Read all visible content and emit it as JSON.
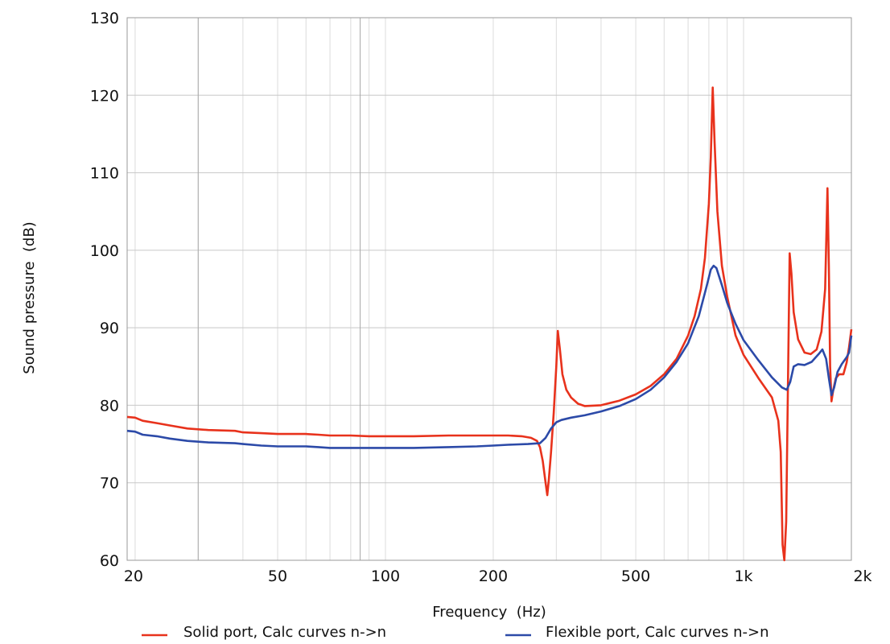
{
  "chart_data": {
    "type": "line",
    "title": "",
    "xlabel": "Frequency  (Hz)",
    "ylabel": "Sound pressure  (dB)",
    "xscale": "log",
    "xlim": [
      19,
      2000
    ],
    "ylim": [
      60,
      130
    ],
    "grid": true,
    "legend_position": "bottom",
    "x_ticks": [
      20,
      50,
      100,
      200,
      500,
      1000,
      2000
    ],
    "x_tick_labels": [
      "20",
      "50",
      "100",
      "200",
      "500",
      "1k",
      "2k"
    ],
    "y_ticks": [
      60,
      70,
      80,
      90,
      100,
      110,
      120,
      130
    ],
    "y_tick_labels": [
      "60",
      "70",
      "80",
      "90",
      "100",
      "110",
      "120",
      "130"
    ],
    "series": [
      {
        "name": "Solid port, Calc curves n->n",
        "color": "#e8321c",
        "points": [
          [
            19,
            78.5
          ],
          [
            20,
            78.4
          ],
          [
            21,
            78.0
          ],
          [
            23,
            77.7
          ],
          [
            25,
            77.4
          ],
          [
            28,
            77.0
          ],
          [
            32,
            76.8
          ],
          [
            38,
            76.7
          ],
          [
            40,
            76.5
          ],
          [
            45,
            76.4
          ],
          [
            50,
            76.3
          ],
          [
            55,
            76.3
          ],
          [
            60,
            76.3
          ],
          [
            65,
            76.2
          ],
          [
            70,
            76.1
          ],
          [
            80,
            76.1
          ],
          [
            90,
            76.0
          ],
          [
            100,
            76.0
          ],
          [
            120,
            76.0
          ],
          [
            150,
            76.1
          ],
          [
            180,
            76.1
          ],
          [
            200,
            76.1
          ],
          [
            220,
            76.1
          ],
          [
            240,
            76.0
          ],
          [
            255,
            75.8
          ],
          [
            265,
            75.4
          ],
          [
            270,
            74.6
          ],
          [
            275,
            72.8
          ],
          [
            280,
            70.0
          ],
          [
            283,
            68.4
          ],
          [
            286,
            70.5
          ],
          [
            290,
            74.0
          ],
          [
            295,
            79.0
          ],
          [
            300,
            85.0
          ],
          [
            303,
            89.6
          ],
          [
            307,
            87.2
          ],
          [
            312,
            84.0
          ],
          [
            320,
            82.0
          ],
          [
            330,
            81.0
          ],
          [
            345,
            80.2
          ],
          [
            360,
            79.9
          ],
          [
            400,
            80.0
          ],
          [
            450,
            80.6
          ],
          [
            500,
            81.4
          ],
          [
            550,
            82.5
          ],
          [
            600,
            84.0
          ],
          [
            650,
            86.0
          ],
          [
            700,
            89.0
          ],
          [
            730,
            91.5
          ],
          [
            760,
            95.0
          ],
          [
            780,
            99.0
          ],
          [
            800,
            106.0
          ],
          [
            810,
            112.0
          ],
          [
            820,
            121.0
          ],
          [
            830,
            114.0
          ],
          [
            845,
            105.0
          ],
          [
            870,
            98.0
          ],
          [
            900,
            94.0
          ],
          [
            950,
            89.0
          ],
          [
            1000,
            86.5
          ],
          [
            1100,
            83.5
          ],
          [
            1200,
            81.0
          ],
          [
            1250,
            78.0
          ],
          [
            1270,
            74.0
          ],
          [
            1285,
            62.0
          ],
          [
            1300,
            60.0
          ],
          [
            1315,
            65.0
          ],
          [
            1330,
            82.0
          ],
          [
            1345,
            99.6
          ],
          [
            1360,
            97.0
          ],
          [
            1380,
            92.0
          ],
          [
            1420,
            88.5
          ],
          [
            1480,
            86.8
          ],
          [
            1540,
            86.6
          ],
          [
            1600,
            87.2
          ],
          [
            1650,
            89.5
          ],
          [
            1690,
            95.0
          ],
          [
            1715,
            108.0
          ],
          [
            1730,
            98.0
          ],
          [
            1745,
            85.0
          ],
          [
            1760,
            80.5
          ],
          [
            1780,
            82.0
          ],
          [
            1810,
            83.5
          ],
          [
            1850,
            84.0
          ],
          [
            1900,
            84.0
          ],
          [
            1940,
            85.5
          ],
          [
            1970,
            87.5
          ],
          [
            2000,
            89.8
          ]
        ]
      },
      {
        "name": "Flexible port, Calc curves n->n",
        "color": "#2c4aa8",
        "points": [
          [
            19,
            76.7
          ],
          [
            20,
            76.6
          ],
          [
            21,
            76.2
          ],
          [
            23,
            76.0
          ],
          [
            25,
            75.7
          ],
          [
            28,
            75.4
          ],
          [
            32,
            75.2
          ],
          [
            38,
            75.1
          ],
          [
            40,
            75.0
          ],
          [
            45,
            74.8
          ],
          [
            50,
            74.7
          ],
          [
            55,
            74.7
          ],
          [
            60,
            74.7
          ],
          [
            65,
            74.6
          ],
          [
            70,
            74.5
          ],
          [
            80,
            74.5
          ],
          [
            90,
            74.5
          ],
          [
            100,
            74.5
          ],
          [
            120,
            74.5
          ],
          [
            150,
            74.6
          ],
          [
            180,
            74.7
          ],
          [
            200,
            74.8
          ],
          [
            220,
            74.9
          ],
          [
            250,
            75.0
          ],
          [
            270,
            75.1
          ],
          [
            280,
            75.8
          ],
          [
            290,
            77.0
          ],
          [
            300,
            77.8
          ],
          [
            310,
            78.1
          ],
          [
            330,
            78.4
          ],
          [
            360,
            78.7
          ],
          [
            400,
            79.2
          ],
          [
            450,
            79.9
          ],
          [
            500,
            80.8
          ],
          [
            550,
            82.0
          ],
          [
            600,
            83.6
          ],
          [
            650,
            85.6
          ],
          [
            700,
            88.0
          ],
          [
            750,
            91.5
          ],
          [
            790,
            95.5
          ],
          [
            810,
            97.5
          ],
          [
            825,
            98.0
          ],
          [
            840,
            97.7
          ],
          [
            870,
            95.5
          ],
          [
            900,
            93.2
          ],
          [
            950,
            90.5
          ],
          [
            1000,
            88.4
          ],
          [
            1100,
            85.8
          ],
          [
            1200,
            83.6
          ],
          [
            1280,
            82.3
          ],
          [
            1320,
            82.0
          ],
          [
            1350,
            83.0
          ],
          [
            1380,
            85.0
          ],
          [
            1420,
            85.3
          ],
          [
            1480,
            85.2
          ],
          [
            1550,
            85.6
          ],
          [
            1620,
            86.6
          ],
          [
            1660,
            87.2
          ],
          [
            1700,
            86.0
          ],
          [
            1730,
            83.5
          ],
          [
            1760,
            81.3
          ],
          [
            1790,
            82.3
          ],
          [
            1830,
            84.3
          ],
          [
            1880,
            85.3
          ],
          [
            1940,
            86.2
          ],
          [
            1970,
            86.8
          ],
          [
            2000,
            89.0
          ]
        ]
      }
    ]
  }
}
